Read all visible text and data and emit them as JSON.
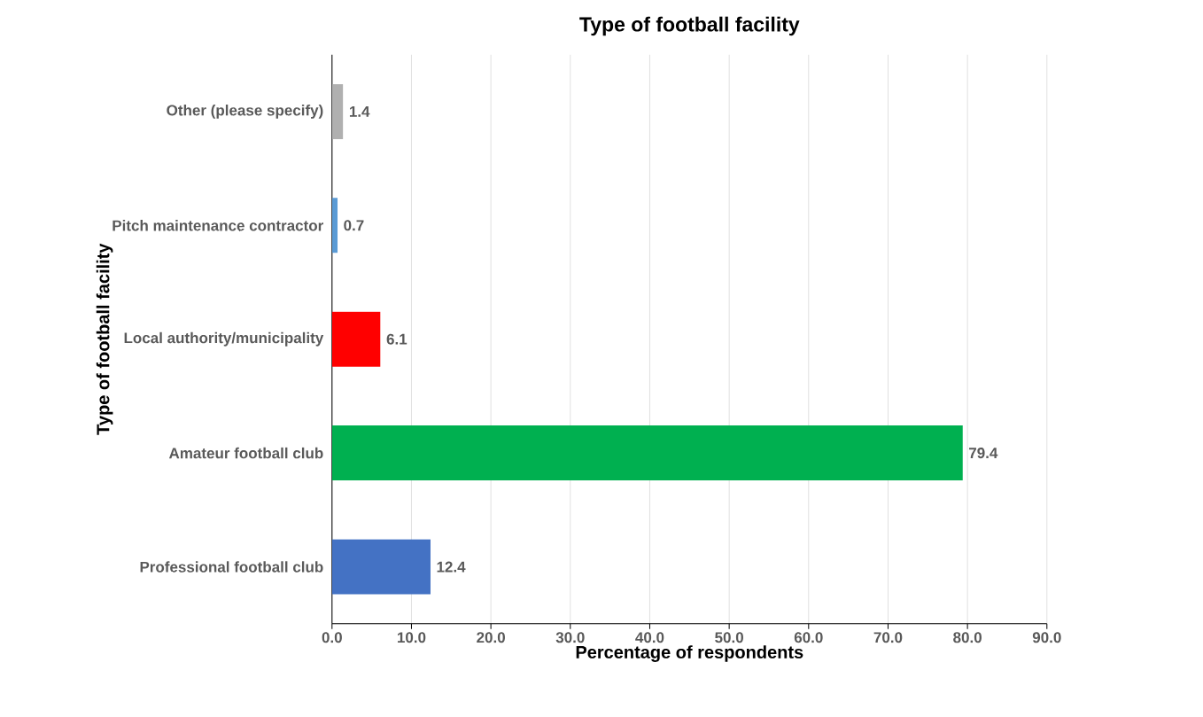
{
  "chart_data": {
    "type": "bar",
    "orientation": "horizontal",
    "title": "Type of football facility",
    "xlabel": "Percentage of respondents",
    "ylabel": "Type of football facility",
    "categories": [
      "Other (please specify)",
      "Pitch maintenance contractor",
      "Local authority/municipality",
      "Amateur football club",
      "Professional football club"
    ],
    "values": [
      1.4,
      0.7,
      6.1,
      79.4,
      12.4
    ],
    "colors": [
      "#b0b0b0",
      "#5b9bd5",
      "#ff0000",
      "#00b050",
      "#4472c4"
    ],
    "xlim": [
      0,
      90
    ],
    "xticks": [
      {
        "value": 0,
        "label": "0.0"
      },
      {
        "value": 10,
        "label": "10.0"
      },
      {
        "value": 20,
        "label": "20.0"
      },
      {
        "value": 30,
        "label": "30.0"
      },
      {
        "value": 40,
        "label": "40.0"
      },
      {
        "value": 50,
        "label": "50.0"
      },
      {
        "value": 60,
        "label": "60.0"
      },
      {
        "value": 70,
        "label": "70.0"
      },
      {
        "value": 80,
        "label": "80.0"
      },
      {
        "value": 90,
        "label": "90.0"
      }
    ],
    "grid": "x",
    "data_labels": true
  }
}
